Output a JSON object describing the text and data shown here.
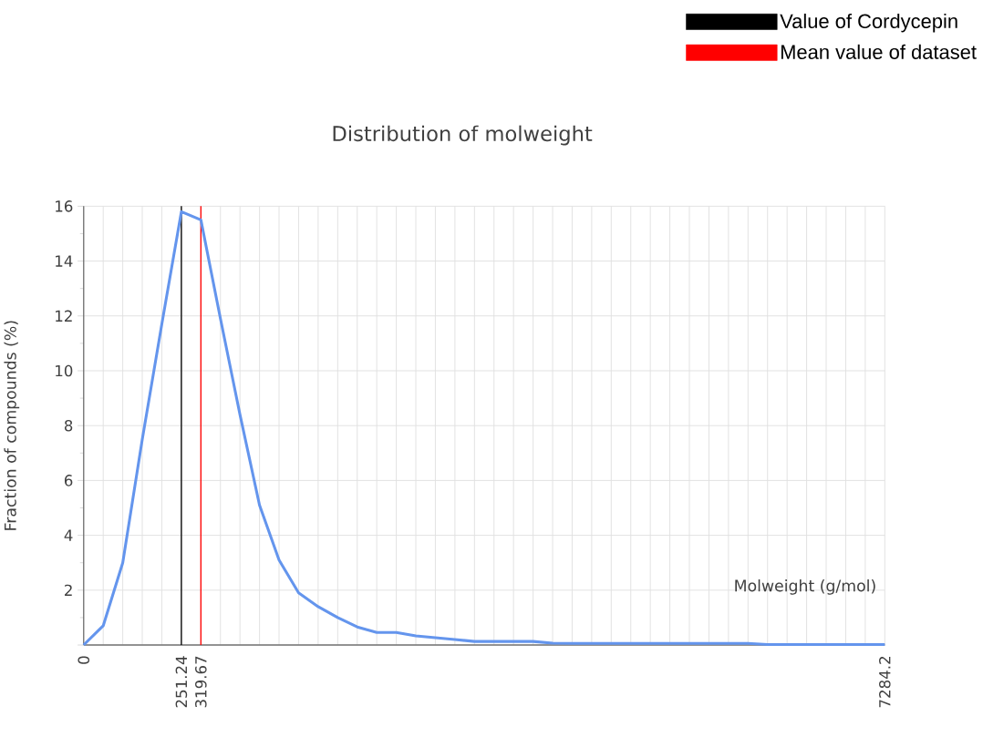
{
  "chart_data": {
    "type": "line",
    "title": "Distribution of molweight",
    "xlabel": "Molweight (g/mol)",
    "ylabel": "Fraction of compounds (%)",
    "categories": [
      "0",
      null,
      null,
      null,
      null,
      "251.24",
      "319.67",
      null,
      null,
      null,
      null,
      null,
      null,
      null,
      null,
      null,
      null,
      null,
      null,
      null,
      null,
      null,
      null,
      null,
      null,
      null,
      null,
      null,
      null,
      null,
      null,
      null,
      null,
      null,
      null,
      null,
      null,
      null,
      null,
      null,
      null,
      "7284.2"
    ],
    "series": [
      {
        "color": "#6495ed",
        "values": [
          0,
          0.7,
          3.0,
          7.5,
          11.7,
          15.8,
          15.5,
          11.9,
          8.4,
          5.1,
          3.1,
          1.9,
          1.4,
          1.0,
          0.66,
          0.46,
          0.46,
          0.33,
          0.27,
          0.2,
          0.13,
          0.13,
          0.13,
          0.13,
          0.07,
          0.06,
          0.06,
          0.06,
          0.06,
          0.06,
          0.06,
          0.06,
          0.06,
          0.06,
          0.06,
          0.02,
          0.02,
          0.02,
          0.02,
          0.02,
          0.02,
          0.02
        ]
      }
    ],
    "ylim": [
      0,
      16
    ],
    "yticks": [
      {
        "value": 0,
        "label": null
      },
      2,
      4,
      6,
      8,
      10,
      12,
      14,
      16
    ],
    "ref_lines": [
      {
        "axis": "x",
        "value": "251.24",
        "label": "Value of Cordycepin",
        "color": "#000000"
      },
      {
        "axis": "x",
        "value": "319.67",
        "label": "Mean value of dataset",
        "color": "#ff0000"
      }
    ],
    "grid": true,
    "legend": "top right",
    "marker": "none",
    "line_style": "solid"
  }
}
